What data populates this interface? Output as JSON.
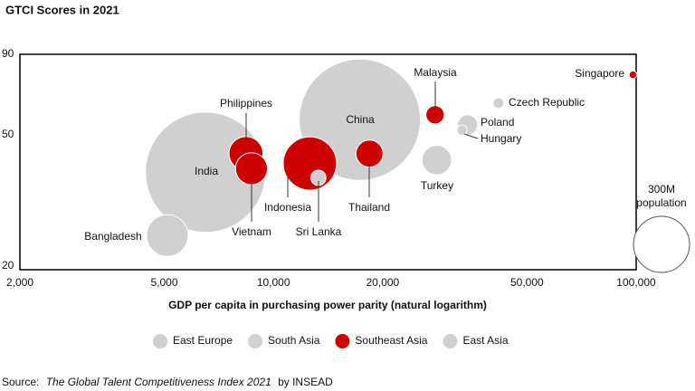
{
  "chart_data": {
    "type": "bubble",
    "title": "GTCI Scores in 2021",
    "x_label": "GDP per capita in purchasing power parity (natural logarithm)",
    "xscale": "log",
    "yscale": "log",
    "xlim": [
      2000,
      100000
    ],
    "ylim": [
      20,
      90
    ],
    "xticks": [
      {
        "value": 2000,
        "label": "2,000"
      },
      {
        "value": 5000,
        "label": "5,000"
      },
      {
        "value": 10000,
        "label": "10,000"
      },
      {
        "value": 20000,
        "label": "20,000"
      },
      {
        "value": 50000,
        "label": "50,000"
      },
      {
        "value": 100000,
        "label": "100,000"
      }
    ],
    "yticks": [
      20,
      50,
      90
    ],
    "grid": false,
    "legend": "bottom",
    "series": [
      {
        "name": "East Europe",
        "color": "#d0d0d0",
        "labels": [
          "Czech Republic",
          "Poland",
          "Hungary",
          "Turkey"
        ],
        "x": [
          41700,
          34300,
          33100,
          28200
        ],
        "values": [
          64,
          55,
          53,
          43
        ],
        "sizes": [
          10.7,
          38,
          9.8,
          83
        ]
      },
      {
        "name": "South Asia",
        "color": "#d0d0d0",
        "labels": [
          "India",
          "Sri Lanka",
          "Bangladesh"
        ],
        "x": [
          6500,
          13300,
          5100
        ],
        "values": [
          39.5,
          38,
          25.4
        ],
        "sizes": [
          1380,
          22,
          165
        ]
      },
      {
        "name": "Southeast Asia",
        "color": "#cc0000",
        "labels": [
          "Singapore",
          "Malaysia",
          "Thailand",
          "Indonesia",
          "Philippines",
          "Vietnam"
        ],
        "x": [
          98000,
          27900,
          18400,
          12600,
          8400,
          8700
        ],
        "values": [
          78,
          59,
          45,
          42,
          45,
          40.5
        ],
        "sizes": [
          5.7,
          32,
          70,
          270,
          110,
          97
        ]
      },
      {
        "name": "East Asia",
        "color": "#d0d0d0",
        "labels": [
          "China"
        ],
        "x": [
          17300
        ],
        "values": [
          57
        ],
        "sizes": [
          1400
        ]
      }
    ],
    "size_legend": {
      "value": 300,
      "label_lines": [
        "300M",
        "population"
      ]
    },
    "source": {
      "prefix": "Source:",
      "title": "The Global Talent Competitiveness Index 2021",
      "suffix": "by INSEAD"
    }
  }
}
